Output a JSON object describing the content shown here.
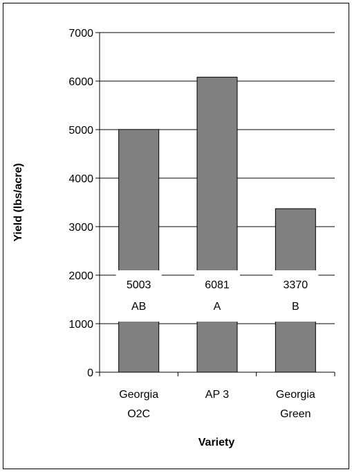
{
  "chart_data": {
    "type": "bar",
    "categories": [
      "Georgia O2C",
      "AP 3",
      "Georgia Green"
    ],
    "category_lines": [
      [
        "Georgia",
        "O2C"
      ],
      [
        "AP 3"
      ],
      [
        "Georgia",
        "Green"
      ]
    ],
    "values": [
      5003,
      6081,
      3370
    ],
    "letters": [
      "AB",
      "A",
      "B"
    ],
    "title": "",
    "xlabel": "Variety",
    "ylabel": "Yield (lbs/acre)",
    "ylim": [
      0,
      7000
    ],
    "yticks": [
      0,
      1000,
      2000,
      3000,
      4000,
      5000,
      6000,
      7000
    ],
    "grid": true,
    "legend": "none",
    "colors": {
      "bar": "#808080",
      "bar_edge": "#000000",
      "grid": "#000000",
      "label_bg": "#ffffff"
    }
  }
}
